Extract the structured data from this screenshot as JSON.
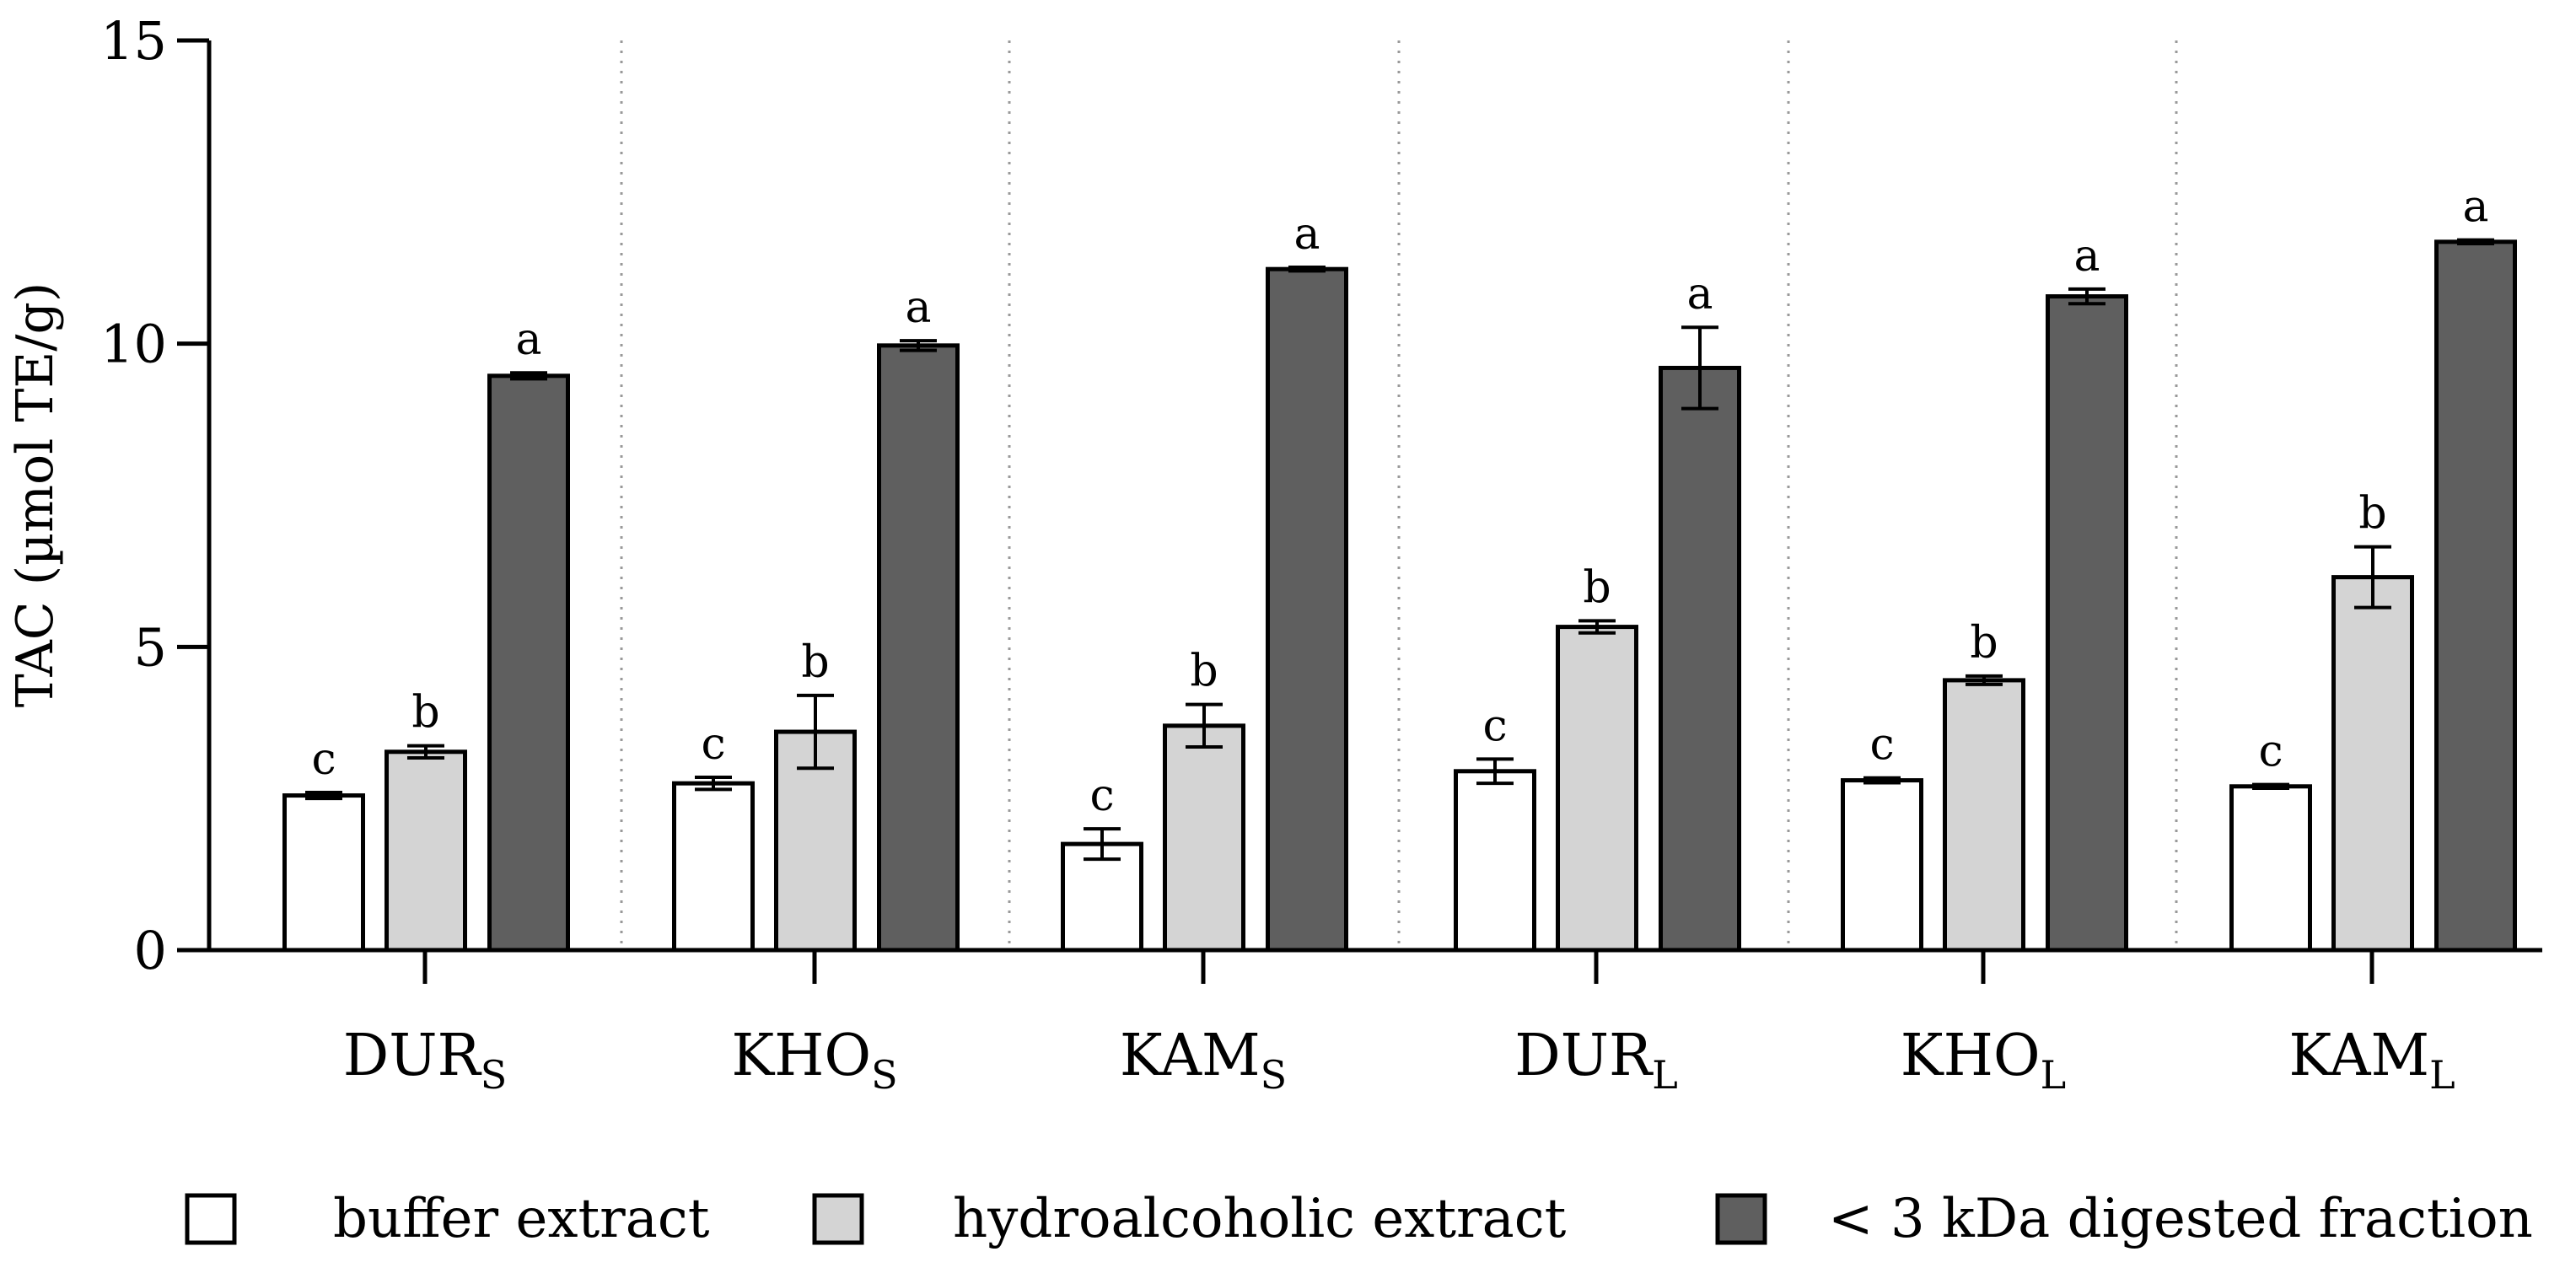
{
  "chart_data": {
    "type": "bar",
    "title": "",
    "xlabel": "",
    "ylabel": "TAC (µmol TE/g)",
    "ylim": [
      0,
      15
    ],
    "yticks": [
      0,
      5,
      10,
      15
    ],
    "grid": false,
    "group_separators": "dotted",
    "legend_position": "bottom",
    "categories": [
      {
        "base": "DUR",
        "sub": "S"
      },
      {
        "base": "KHO",
        "sub": "S"
      },
      {
        "base": "KAM",
        "sub": "S"
      },
      {
        "base": "DUR",
        "sub": "L"
      },
      {
        "base": "KHO",
        "sub": "L"
      },
      {
        "base": "KAM",
        "sub": "L"
      }
    ],
    "series": [
      {
        "name": "buffer extract",
        "color": "#ffffff",
        "values": [
          2.55,
          2.75,
          1.75,
          2.95,
          2.8,
          2.7
        ],
        "errors": [
          0.05,
          0.1,
          0.25,
          0.2,
          0.04,
          0.03
        ],
        "labels": [
          "c",
          "c",
          "c",
          "c",
          "c",
          "c"
        ]
      },
      {
        "name": "hydroalcoholic extract",
        "color": "#d4d4d4",
        "values": [
          3.27,
          3.6,
          3.7,
          5.33,
          4.45,
          6.15
        ],
        "errors": [
          0.1,
          0.6,
          0.35,
          0.1,
          0.07,
          0.5
        ],
        "labels": [
          "b",
          "b",
          "b",
          "b",
          "b",
          "b"
        ]
      },
      {
        "name": "< 3 kDa digested fraction",
        "color": "#5f5f5f",
        "values": [
          9.47,
          9.97,
          11.23,
          9.6,
          10.78,
          11.68
        ],
        "errors": [
          0.05,
          0.08,
          0.03,
          0.67,
          0.12,
          0.03
        ],
        "labels": [
          "a",
          "a",
          "a",
          "a",
          "a",
          "a"
        ]
      }
    ]
  }
}
